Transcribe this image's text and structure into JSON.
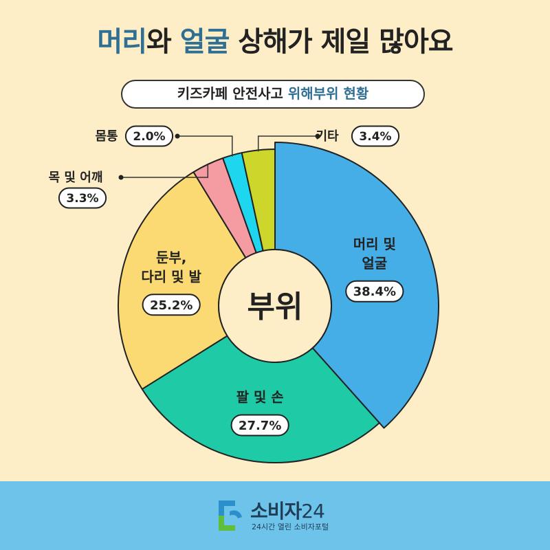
{
  "headline": {
    "part1": "머리",
    "part2": "와 ",
    "part3": "얼굴",
    "part4": " 상해가 제일 많아요"
  },
  "subtitle": {
    "plain": "키즈카페 안전사고 ",
    "highlight": "위해부위 현황"
  },
  "chart_data": {
    "type": "pie",
    "title": "부위",
    "series": [
      {
        "name": "머리 및 얼굴",
        "lines": [
          "머리 및",
          "얼굴"
        ],
        "value": 38.4,
        "display": "38.4%",
        "color": "#45aee6"
      },
      {
        "name": "팔 및 손",
        "lines": [
          "팔 및 손"
        ],
        "value": 27.7,
        "display": "27.7%",
        "color": "#1ecba6"
      },
      {
        "name": "둔부, 다리 및 발",
        "lines": [
          "둔부,",
          "다리 및 발"
        ],
        "value": 25.2,
        "display": "25.2%",
        "color": "#fcda73"
      },
      {
        "name": "목 및 어깨",
        "lines": [
          "목 및 어깨"
        ],
        "value": 3.3,
        "display": "3.3%",
        "color": "#f59ba2"
      },
      {
        "name": "몸통",
        "lines": [
          "몸통"
        ],
        "value": 2.0,
        "display": "2.0%",
        "color": "#1ed6ee"
      },
      {
        "name": "기타",
        "lines": [
          "기타"
        ],
        "value": 3.4,
        "display": "3.4%",
        "color": "#ccd62b"
      }
    ]
  },
  "footer": {
    "brand": "소비자",
    "brand_num": "24",
    "tagline": "24시간 열린 소비자포털",
    "logo_colors": [
      "#2b8fc9",
      "#5fbf3a",
      "#1f3d55"
    ]
  }
}
